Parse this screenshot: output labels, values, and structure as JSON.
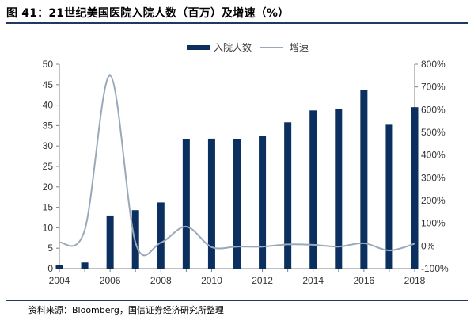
{
  "figure": {
    "title": "图 41：21世纪美国医院入院人数（百万）及增速（%）",
    "source": "资料来源：Bloomberg，国信证券经济研究所整理"
  },
  "colors": {
    "bar": "#0b2f5e",
    "line": "#9aa9b9",
    "axis": "#808080",
    "title_rule": "#1f3864"
  },
  "chart_data": {
    "type": "bar",
    "categories": [
      "2004",
      "2005",
      "2006",
      "2007",
      "2008",
      "2009",
      "2010",
      "2011",
      "2012",
      "2013",
      "2014",
      "2015",
      "2016",
      "2017",
      "2018"
    ],
    "series": [
      {
        "name": "入院人数",
        "type": "bar",
        "axis": "left",
        "values": [
          0.8,
          1.5,
          13.0,
          14.3,
          16.2,
          31.6,
          31.8,
          31.6,
          32.4,
          35.8,
          38.7,
          39.0,
          43.8,
          35.2,
          39.5
        ]
      },
      {
        "name": "增速",
        "type": "line",
        "axis": "right",
        "unit": "%",
        "values": [
          15,
          70,
          750,
          15,
          15,
          85,
          -5,
          -3,
          -3,
          7,
          5,
          -3,
          12,
          -20,
          10
        ]
      }
    ],
    "y_left": {
      "min": 0,
      "max": 50,
      "ticks": [
        0,
        5,
        10,
        15,
        20,
        25,
        30,
        35,
        40,
        45,
        50
      ],
      "tick_labels": [
        "0",
        "5",
        "10",
        "15",
        "20",
        "25",
        "30",
        "35",
        "40",
        "45",
        "50"
      ]
    },
    "y_right": {
      "min": -100,
      "max": 800,
      "ticks": [
        -100,
        0,
        100,
        200,
        300,
        400,
        500,
        600,
        700,
        800
      ],
      "tick_labels": [
        "-100%",
        "0%",
        "100%",
        "200%",
        "300%",
        "400%",
        "500%",
        "600%",
        "700%",
        "800%"
      ]
    },
    "x_ticks": [
      "2004",
      "2006",
      "2008",
      "2010",
      "2012",
      "2014",
      "2016",
      "2018"
    ],
    "grid": false,
    "legend_position": "top-right"
  }
}
